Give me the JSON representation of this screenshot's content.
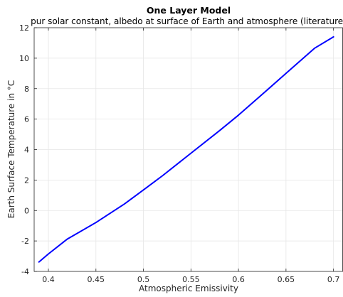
{
  "chart_data": {
    "type": "line",
    "title": "One Layer Model",
    "subtitle": "pur solar constant, albedo at surface of Earth and atmosphere (literature)",
    "xlabel": "Atmospheric Emissivity",
    "ylabel": "Earth Surface Temperature in °C",
    "xlim": [
      0.385,
      0.71
    ],
    "ylim": [
      -4,
      12
    ],
    "xticks": [
      0.4,
      0.45,
      0.5,
      0.55,
      0.6,
      0.65,
      0.7
    ],
    "xtick_labels": [
      "0.4",
      "0.45",
      "0.5",
      "0.55",
      "0.6",
      "0.65",
      "0.7"
    ],
    "yticks": [
      -4,
      -2,
      0,
      2,
      4,
      6,
      8,
      10,
      12
    ],
    "ytick_labels": [
      "-4",
      "-2",
      "0",
      "2",
      "4",
      "6",
      "8",
      "10",
      "12"
    ],
    "grid": true,
    "legend": "none",
    "series": [
      {
        "color": "#0000ff",
        "x": [
          0.39,
          0.4,
          0.42,
          0.45,
          0.48,
          0.5,
          0.52,
          0.55,
          0.58,
          0.6,
          0.62,
          0.65,
          0.68,
          0.7
        ],
        "y": [
          -3.38,
          -2.85,
          -1.87,
          -0.79,
          0.43,
          1.35,
          2.28,
          3.76,
          5.24,
          6.26,
          7.35,
          9.0,
          10.65,
          11.4
        ]
      }
    ]
  }
}
